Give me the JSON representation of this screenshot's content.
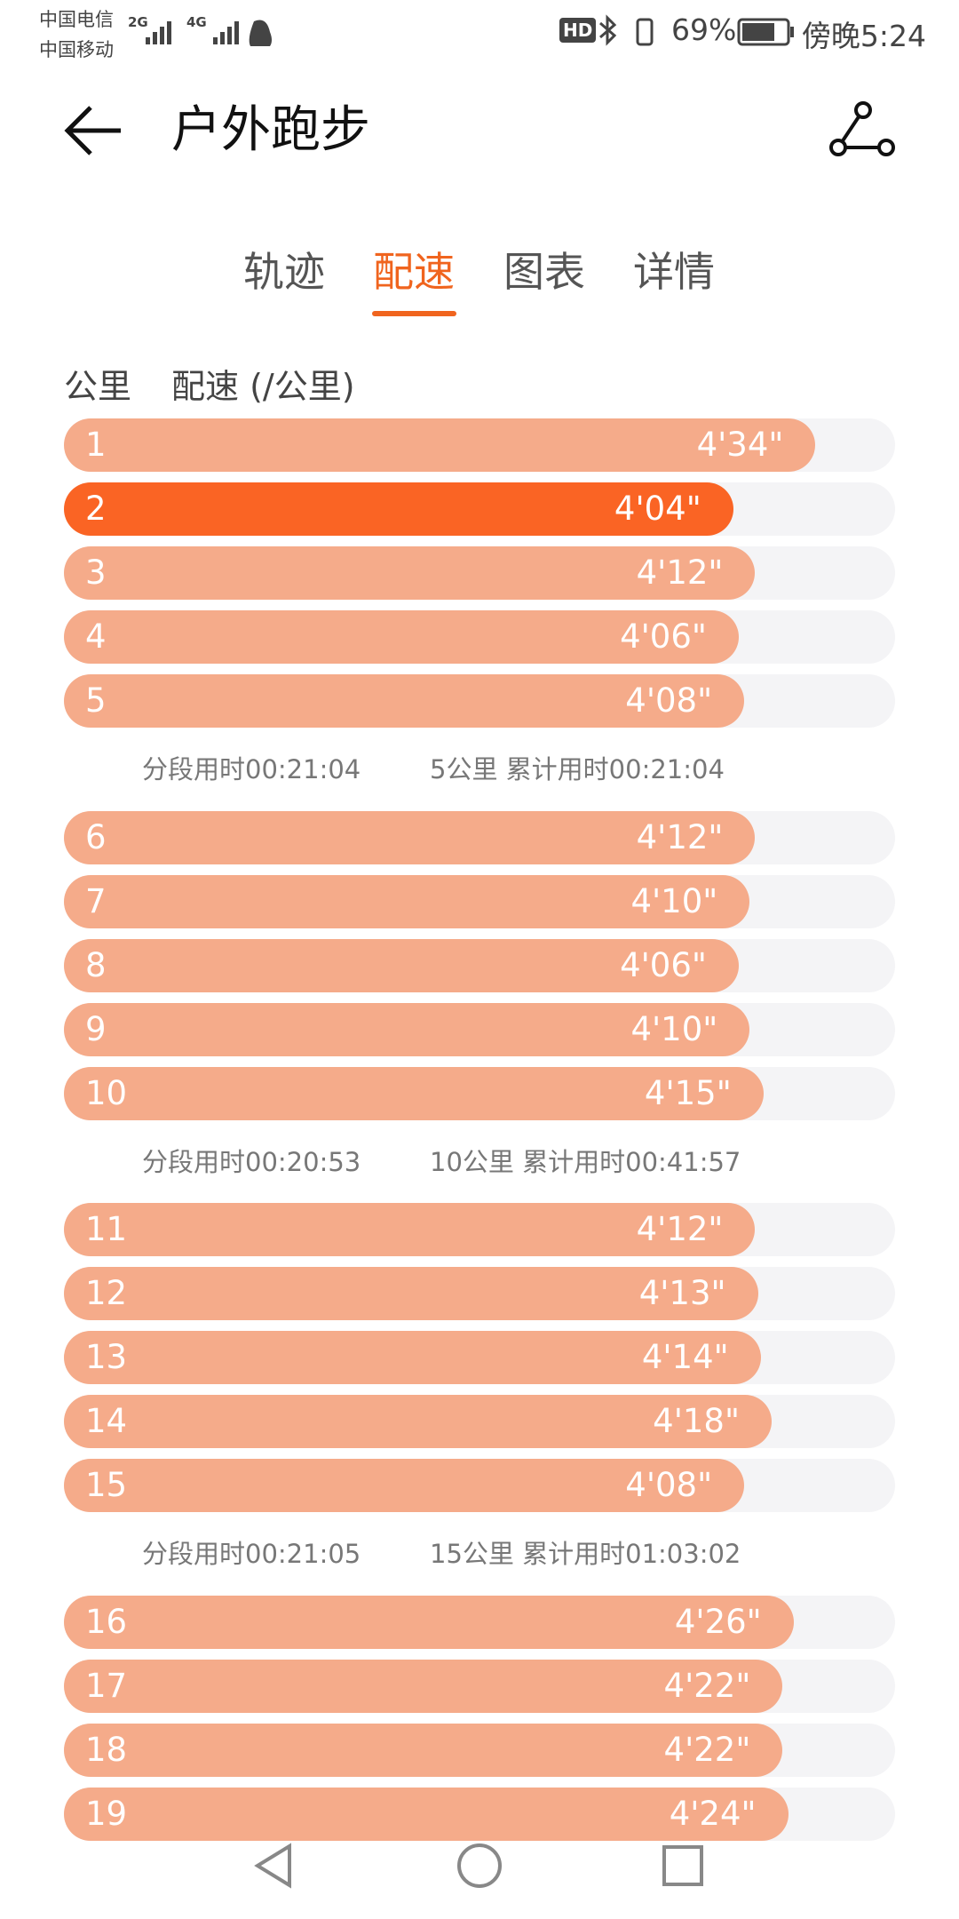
{
  "status_bar": {
    "carrier_1": "中国电信",
    "carrier_2": "中国移动",
    "net_1": "2G",
    "net_2": "4G",
    "hd": "HD",
    "battery": "69%",
    "time": "傍晚5:24"
  },
  "header": {
    "title": "户外跑步"
  },
  "tabs": [
    "轨迹",
    "配速",
    "图表",
    "详情"
  ],
  "active_tab": 1,
  "column_headers": [
    "公里",
    "配速 (/公里)"
  ],
  "pace_chart": {
    "type": "bar",
    "categories": [
      "1",
      "2",
      "3",
      "4",
      "5",
      "6",
      "7",
      "8",
      "9",
      "10",
      "11",
      "12",
      "13",
      "14",
      "15",
      "16",
      "17",
      "18",
      "19"
    ],
    "values": [
      274,
      244,
      252,
      246,
      248,
      252,
      250,
      246,
      250,
      255,
      252,
      253,
      254,
      258,
      248,
      266,
      262,
      262,
      264
    ],
    "value_labels": [
      "4'34\"",
      "4'04\"",
      "4'12\"",
      "4'06\"",
      "4'08\"",
      "4'12\"",
      "4'10\"",
      "4'06\"",
      "4'10\"",
      "4'15\"",
      "4'12\"",
      "4'13\"",
      "4'14\"",
      "4'18\"",
      "4'08\"",
      "4'26\"",
      "4'22\"",
      "4'22\"",
      "4'24\""
    ],
    "color": "#f5ab8a",
    "highlight_color": "#fa6424",
    "xlim": [
      0,
      303
    ]
  },
  "segments": [
    {
      "split": "分段用时00:21:04",
      "total": "5公里 累计用时00:21:04"
    },
    {
      "split": "分段用时00:20:53",
      "total": "10公里 累计用时00:41:57"
    },
    {
      "split": "分段用时00:21:05",
      "total": "15公里 累计用时01:03:02"
    }
  ]
}
